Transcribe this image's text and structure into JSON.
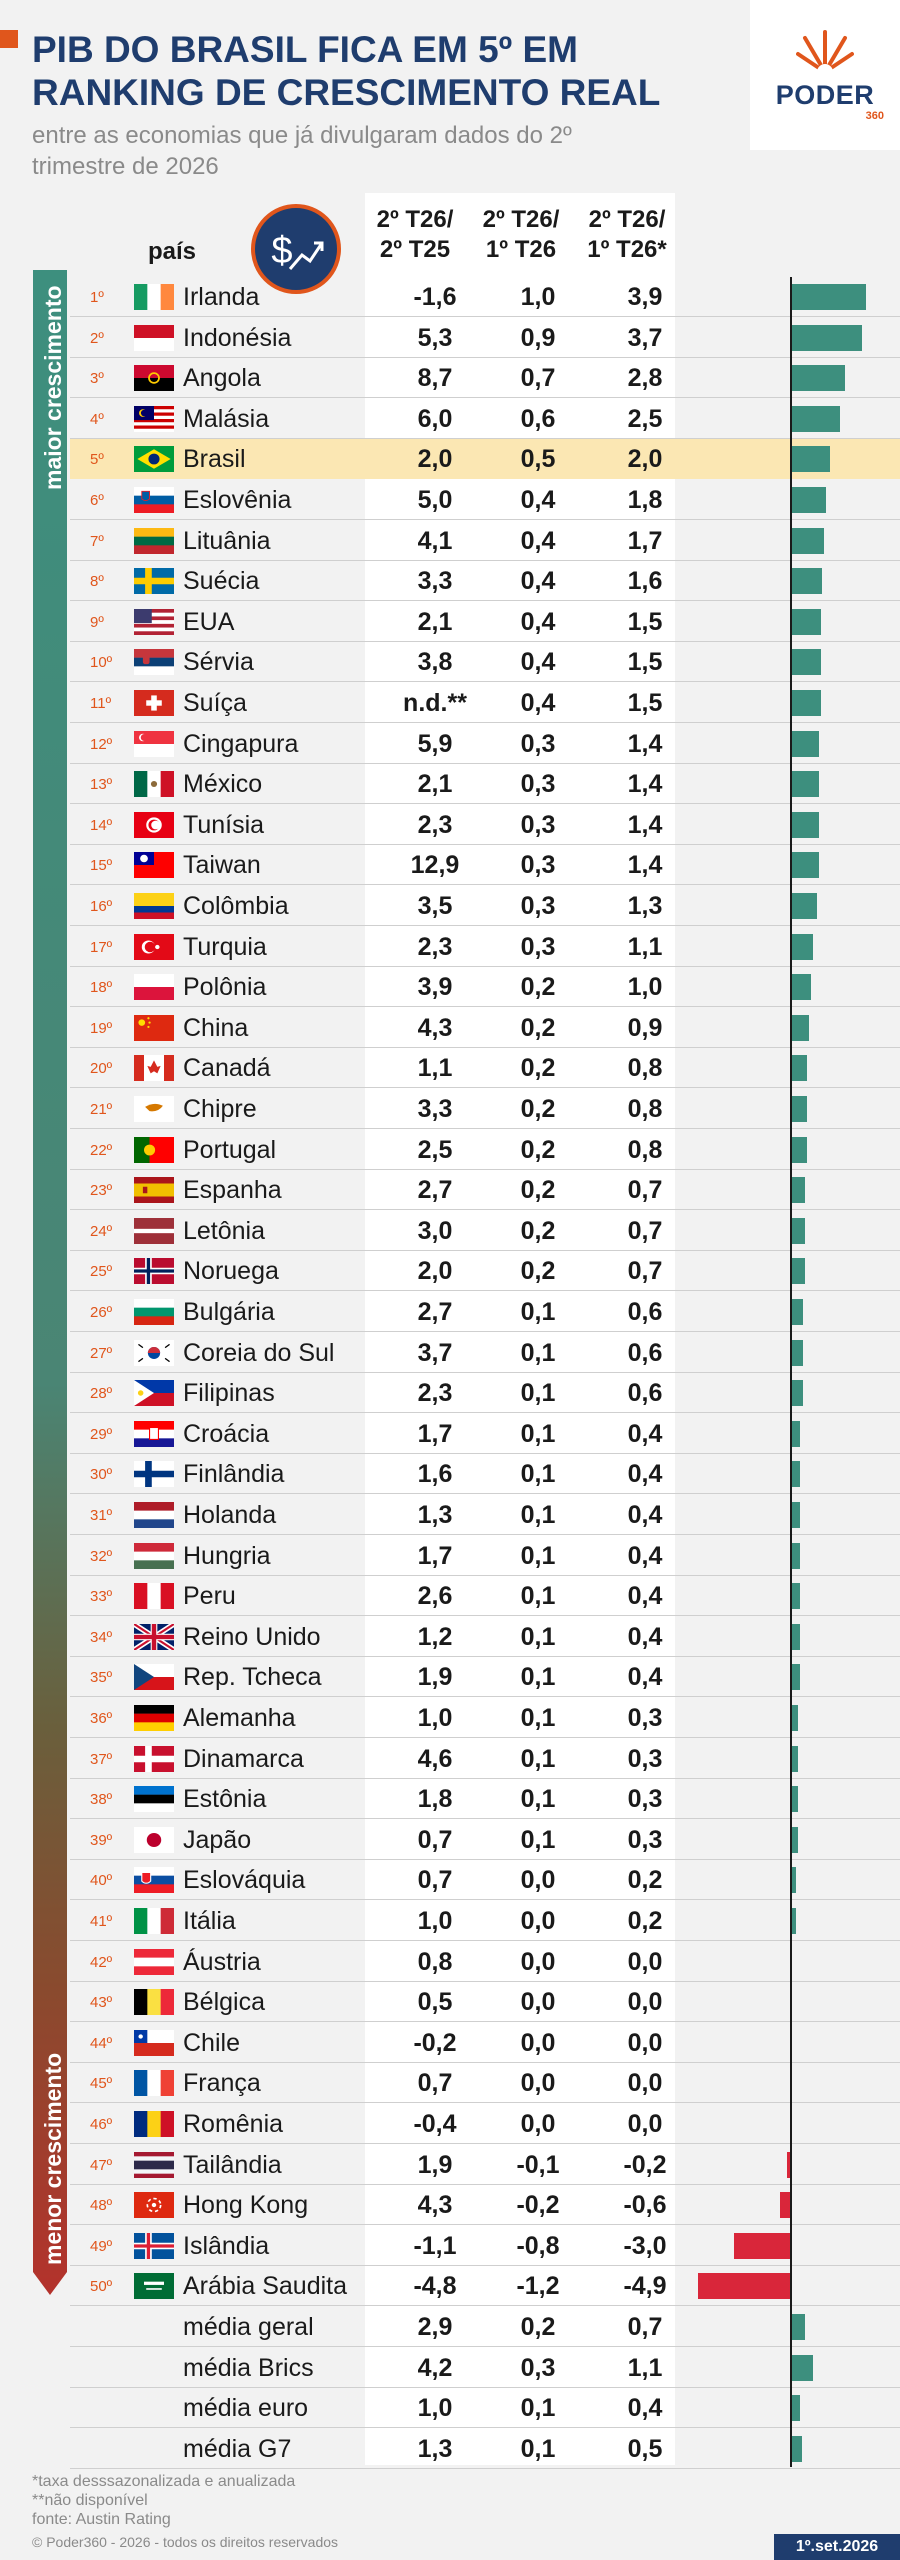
{
  "header": {
    "title_line1": "PIB DO BRASIL FICA EM 5º EM",
    "title_line2": "RANKING DE CRESCIMENTO REAL",
    "subtitle_line1": "entre as economias que já divulgaram dados do 2º",
    "subtitle_line2": "trimestre de 2026"
  },
  "logo": {
    "name": "PODER",
    "sub": "360"
  },
  "columns": {
    "country": "país",
    "c1_line1": "2º T26/",
    "c1_line2": "2º T25",
    "c2_line1": "2º T26/",
    "c2_line2": "1º T26",
    "c3_line1": "2º T26/",
    "c3_line2": "1º T26*"
  },
  "side_labels": {
    "top": "maior crescimento",
    "bottom": "menor crescimento"
  },
  "colors": {
    "accent": "#e0561c",
    "navy": "#1f3d6e",
    "positive_bar": "#3d8f7e",
    "negative_bar": "#d9263a",
    "highlight": "#fbe7b3"
  },
  "chart_data": {
    "type": "table",
    "highlight_country": "Brasil",
    "rows": [
      {
        "rank": "1º",
        "country": "Irlanda",
        "flag": "ireland",
        "c1": "-1,6",
        "c2": "1,0",
        "c3": "3,9",
        "bar": 3.9
      },
      {
        "rank": "2º",
        "country": "Indonésia",
        "flag": "indonesia",
        "c1": "5,3",
        "c2": "0,9",
        "c3": "3,7",
        "bar": 3.7
      },
      {
        "rank": "3º",
        "country": "Angola",
        "flag": "angola",
        "c1": "8,7",
        "c2": "0,7",
        "c3": "2,8",
        "bar": 2.8
      },
      {
        "rank": "4º",
        "country": "Malásia",
        "flag": "malaysia",
        "c1": "6,0",
        "c2": "0,6",
        "c3": "2,5",
        "bar": 2.5
      },
      {
        "rank": "5º",
        "country": "Brasil",
        "flag": "brazil",
        "c1": "2,0",
        "c2": "0,5",
        "c3": "2,0",
        "bar": 2.0
      },
      {
        "rank": "6º",
        "country": "Eslovênia",
        "flag": "slovenia",
        "c1": "5,0",
        "c2": "0,4",
        "c3": "1,8",
        "bar": 1.8
      },
      {
        "rank": "7º",
        "country": "Lituânia",
        "flag": "lithuania",
        "c1": "4,1",
        "c2": "0,4",
        "c3": "1,7",
        "bar": 1.7
      },
      {
        "rank": "8º",
        "country": "Suécia",
        "flag": "sweden",
        "c1": "3,3",
        "c2": "0,4",
        "c3": "1,6",
        "bar": 1.6
      },
      {
        "rank": "9º",
        "country": "EUA",
        "flag": "usa",
        "c1": "2,1",
        "c2": "0,4",
        "c3": "1,5",
        "bar": 1.5
      },
      {
        "rank": "10º",
        "country": "Sérvia",
        "flag": "serbia",
        "c1": "3,8",
        "c2": "0,4",
        "c3": "1,5",
        "bar": 1.5
      },
      {
        "rank": "11º",
        "country": "Suíça",
        "flag": "switzerland",
        "c1": "n.d.**",
        "c2": "0,4",
        "c3": "1,5",
        "bar": 1.5
      },
      {
        "rank": "12º",
        "country": "Cingapura",
        "flag": "singapore",
        "c1": "5,9",
        "c2": "0,3",
        "c3": "1,4",
        "bar": 1.4
      },
      {
        "rank": "13º",
        "country": "México",
        "flag": "mexico",
        "c1": "2,1",
        "c2": "0,3",
        "c3": "1,4",
        "bar": 1.4
      },
      {
        "rank": "14º",
        "country": "Tunísia",
        "flag": "tunisia",
        "c1": "2,3",
        "c2": "0,3",
        "c3": "1,4",
        "bar": 1.4
      },
      {
        "rank": "15º",
        "country": "Taiwan",
        "flag": "taiwan",
        "c1": "12,9",
        "c2": "0,3",
        "c3": "1,4",
        "bar": 1.4
      },
      {
        "rank": "16º",
        "country": "Colômbia",
        "flag": "colombia",
        "c1": "3,5",
        "c2": "0,3",
        "c3": "1,3",
        "bar": 1.3
      },
      {
        "rank": "17º",
        "country": "Turquia",
        "flag": "turkey",
        "c1": "2,3",
        "c2": "0,3",
        "c3": "1,1",
        "bar": 1.1
      },
      {
        "rank": "18º",
        "country": "Polônia",
        "flag": "poland",
        "c1": "3,9",
        "c2": "0,2",
        "c3": "1,0",
        "bar": 1.0
      },
      {
        "rank": "19º",
        "country": "China",
        "flag": "china",
        "c1": "4,3",
        "c2": "0,2",
        "c3": "0,9",
        "bar": 0.9
      },
      {
        "rank": "20º",
        "country": "Canadá",
        "flag": "canada",
        "c1": "1,1",
        "c2": "0,2",
        "c3": "0,8",
        "bar": 0.8
      },
      {
        "rank": "21º",
        "country": "Chipre",
        "flag": "cyprus",
        "c1": "3,3",
        "c2": "0,2",
        "c3": "0,8",
        "bar": 0.8
      },
      {
        "rank": "22º",
        "country": "Portugal",
        "flag": "portugal",
        "c1": "2,5",
        "c2": "0,2",
        "c3": "0,8",
        "bar": 0.8
      },
      {
        "rank": "23º",
        "country": "Espanha",
        "flag": "spain",
        "c1": "2,7",
        "c2": "0,2",
        "c3": "0,7",
        "bar": 0.7
      },
      {
        "rank": "24º",
        "country": "Letônia",
        "flag": "latvia",
        "c1": "3,0",
        "c2": "0,2",
        "c3": "0,7",
        "bar": 0.7
      },
      {
        "rank": "25º",
        "country": "Noruega",
        "flag": "norway",
        "c1": "2,0",
        "c2": "0,2",
        "c3": "0,7",
        "bar": 0.7
      },
      {
        "rank": "26º",
        "country": "Bulgária",
        "flag": "bulgaria",
        "c1": "2,7",
        "c2": "0,1",
        "c3": "0,6",
        "bar": 0.6
      },
      {
        "rank": "27º",
        "country": "Coreia do Sul",
        "flag": "south-korea",
        "c1": "3,7",
        "c2": "0,1",
        "c3": "0,6",
        "bar": 0.6
      },
      {
        "rank": "28º",
        "country": "Filipinas",
        "flag": "philippines",
        "c1": "2,3",
        "c2": "0,1",
        "c3": "0,6",
        "bar": 0.6
      },
      {
        "rank": "29º",
        "country": "Croácia",
        "flag": "croatia",
        "c1": "1,7",
        "c2": "0,1",
        "c3": "0,4",
        "bar": 0.4
      },
      {
        "rank": "30º",
        "country": "Finlândia",
        "flag": "finland",
        "c1": "1,6",
        "c2": "0,1",
        "c3": "0,4",
        "bar": 0.4
      },
      {
        "rank": "31º",
        "country": "Holanda",
        "flag": "netherlands",
        "c1": "1,3",
        "c2": "0,1",
        "c3": "0,4",
        "bar": 0.4
      },
      {
        "rank": "32º",
        "country": "Hungria",
        "flag": "hungary",
        "c1": "1,7",
        "c2": "0,1",
        "c3": "0,4",
        "bar": 0.4
      },
      {
        "rank": "33º",
        "country": "Peru",
        "flag": "peru",
        "c1": "2,6",
        "c2": "0,1",
        "c3": "0,4",
        "bar": 0.4
      },
      {
        "rank": "34º",
        "country": "Reino Unido",
        "flag": "uk",
        "c1": "1,2",
        "c2": "0,1",
        "c3": "0,4",
        "bar": 0.4
      },
      {
        "rank": "35º",
        "country": "Rep. Tcheca",
        "flag": "czech",
        "c1": "1,9",
        "c2": "0,1",
        "c3": "0,4",
        "bar": 0.4
      },
      {
        "rank": "36º",
        "country": "Alemanha",
        "flag": "germany",
        "c1": "1,0",
        "c2": "0,1",
        "c3": "0,3",
        "bar": 0.3
      },
      {
        "rank": "37º",
        "country": "Dinamarca",
        "flag": "denmark",
        "c1": "4,6",
        "c2": "0,1",
        "c3": "0,3",
        "bar": 0.3
      },
      {
        "rank": "38º",
        "country": "Estônia",
        "flag": "estonia",
        "c1": "1,8",
        "c2": "0,1",
        "c3": "0,3",
        "bar": 0.3
      },
      {
        "rank": "39º",
        "country": "Japão",
        "flag": "japan",
        "c1": "0,7",
        "c2": "0,1",
        "c3": "0,3",
        "bar": 0.3
      },
      {
        "rank": "40º",
        "country": "Eslováquia",
        "flag": "slovakia",
        "c1": "0,7",
        "c2": "0,0",
        "c3": "0,2",
        "bar": 0.2
      },
      {
        "rank": "41º",
        "country": "Itália",
        "flag": "italy",
        "c1": "1,0",
        "c2": "0,0",
        "c3": "0,2",
        "bar": 0.2
      },
      {
        "rank": "42º",
        "country": "Áustria",
        "flag": "austria",
        "c1": "0,8",
        "c2": "0,0",
        "c3": "0,0",
        "bar": 0.0
      },
      {
        "rank": "43º",
        "country": "Bélgica",
        "flag": "belgium",
        "c1": "0,5",
        "c2": "0,0",
        "c3": "0,0",
        "bar": 0.0
      },
      {
        "rank": "44º",
        "country": "Chile",
        "flag": "chile",
        "c1": "-0,2",
        "c2": "0,0",
        "c3": "0,0",
        "bar": 0.0
      },
      {
        "rank": "45º",
        "country": "França",
        "flag": "france",
        "c1": "0,7",
        "c2": "0,0",
        "c3": "0,0",
        "bar": 0.0
      },
      {
        "rank": "46º",
        "country": "Romênia",
        "flag": "romania",
        "c1": "-0,4",
        "c2": "0,0",
        "c3": "0,0",
        "bar": 0.0
      },
      {
        "rank": "47º",
        "country": "Tailândia",
        "flag": "thailand",
        "c1": "1,9",
        "c2": "-0,1",
        "c3": "-0,2",
        "bar": -0.2
      },
      {
        "rank": "48º",
        "country": "Hong Kong",
        "flag": "hong-kong",
        "c1": "4,3",
        "c2": "-0,2",
        "c3": "-0,6",
        "bar": -0.6
      },
      {
        "rank": "49º",
        "country": "Islândia",
        "flag": "iceland",
        "c1": "-1,1",
        "c2": "-0,8",
        "c3": "-3,0",
        "bar": -3.0
      },
      {
        "rank": "50º",
        "country": "Arábia Saudita",
        "flag": "saudi-arabia",
        "c1": "-4,8",
        "c2": "-1,2",
        "c3": "-4,9",
        "bar": -4.9
      }
    ],
    "averages": [
      {
        "label": "média geral",
        "c1": "2,9",
        "c2": "0,2",
        "c3": "0,7",
        "bar": 0.7
      },
      {
        "label": "média Brics",
        "c1": "4,2",
        "c2": "0,3",
        "c3": "1,1",
        "bar": 1.1
      },
      {
        "label": "média euro",
        "c1": "1,0",
        "c2": "0,1",
        "c3": "0,4",
        "bar": 0.4
      },
      {
        "label": "média G7",
        "c1": "1,3",
        "c2": "0,1",
        "c3": "0,5",
        "bar": 0.5
      }
    ]
  },
  "footer": {
    "note1": "*taxa desssazonalizada e anualizada",
    "note2": "**não disponível",
    "source": "fonte: Austin Rating",
    "copyright": "© Poder360 - 2026 - todos os direitos reservados",
    "date": "1º.set.2026"
  }
}
